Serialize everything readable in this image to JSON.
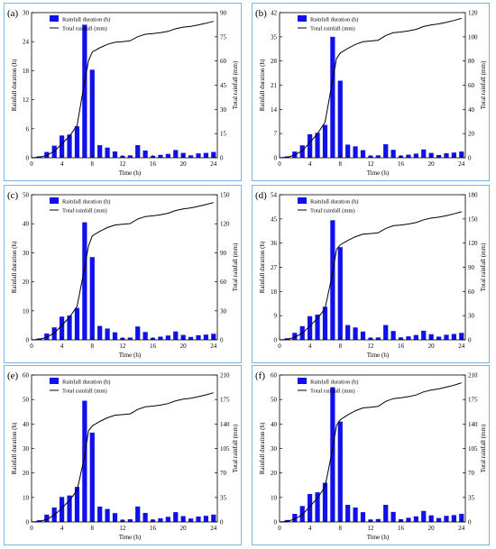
{
  "chart_data": [
    {
      "type": "bar",
      "panel_label": "(a)",
      "xlabel": "Time  (h)",
      "ylabel": "Rainfall duration  (h)",
      "y2label": "Total rainfall  (mm)",
      "legend": [
        "Rainfall duration  (h)",
        "Total rainfall  (mm)"
      ],
      "xticks": [
        0,
        4,
        8,
        12,
        16,
        20,
        24
      ],
      "xlim": [
        0,
        24.5
      ],
      "ylim": [
        0,
        30
      ],
      "yticks": [
        0,
        6,
        12,
        18,
        24,
        30
      ],
      "y2lim": [
        0,
        90
      ],
      "y2ticks": [
        0,
        15,
        30,
        45,
        60,
        75,
        90
      ],
      "series": [
        {
          "name": "Rainfall duration  (h)",
          "kind": "bar",
          "x": [
            1,
            2,
            3,
            4,
            5,
            6,
            7,
            8,
            9,
            10,
            11,
            12,
            13,
            14,
            15,
            16,
            17,
            18,
            19,
            20,
            21,
            22,
            23,
            24
          ],
          "values": [
            0.3,
            1.2,
            2.5,
            4.6,
            4.8,
            6.5,
            27.5,
            18.2,
            2.6,
            2.1,
            1.3,
            0.4,
            0.5,
            2.6,
            1.5,
            0.4,
            0.6,
            0.8,
            1.6,
            1.0,
            0.5,
            0.9,
            1.0,
            1.2
          ]
        },
        {
          "name": "Total rainfall  (mm)",
          "kind": "line",
          "x": [
            0,
            1,
            2,
            3,
            4,
            5,
            6,
            7,
            7.5,
            8,
            9,
            10,
            11,
            12,
            13,
            14,
            15,
            16,
            17,
            18,
            19,
            20,
            21,
            22,
            23,
            24
          ],
          "values": [
            0,
            0.3,
            1.5,
            4,
            8.6,
            13.4,
            19.9,
            47.4,
            60,
            65.6,
            68.2,
            70.3,
            71.6,
            72,
            72.5,
            75.1,
            76.6,
            77,
            77.6,
            78.4,
            80,
            81,
            81.5,
            82.4,
            83.4,
            84.6
          ]
        }
      ]
    },
    {
      "type": "bar",
      "panel_label": "(b)",
      "xlabel": "Time  (h)",
      "ylabel": "Rainfall duration  (h)",
      "y2label": "Total rainfall  (mm)",
      "legend": [
        "Rainfall duration  (h)",
        "Total rainfall  (mm)"
      ],
      "xticks": [
        0,
        4,
        8,
        12,
        16,
        20,
        24
      ],
      "xlim": [
        0,
        24.5
      ],
      "ylim": [
        0,
        42
      ],
      "yticks": [
        0,
        7,
        14,
        21,
        28,
        35,
        42
      ],
      "y2lim": [
        0,
        120
      ],
      "y2ticks": [
        0,
        20,
        40,
        60,
        80,
        100,
        120
      ],
      "series": [
        {
          "name": "Rainfall duration  (h)",
          "kind": "bar",
          "x": [
            1,
            2,
            3,
            4,
            5,
            6,
            7,
            8,
            9,
            10,
            11,
            12,
            13,
            14,
            15,
            16,
            17,
            18,
            19,
            20,
            21,
            22,
            23,
            24
          ],
          "values": [
            0.4,
            1.8,
            3.6,
            6.8,
            7.2,
            9.5,
            35,
            22.3,
            3.8,
            3.3,
            2.2,
            0.6,
            0.7,
            3.9,
            2.3,
            0.6,
            0.9,
            1.2,
            2.4,
            1.4,
            0.8,
            1.3,
            1.5,
            1.8
          ]
        },
        {
          "name": "Total rainfall  (mm)",
          "kind": "line",
          "x": [
            0,
            1,
            2,
            3,
            4,
            5,
            6,
            7,
            7.5,
            8,
            9,
            10,
            11,
            12,
            13,
            14,
            15,
            16,
            17,
            18,
            19,
            20,
            21,
            22,
            23,
            24
          ],
          "values": [
            0,
            0.4,
            2.2,
            5.8,
            12.6,
            19.8,
            29.3,
            64.3,
            82,
            86.6,
            90.4,
            93.7,
            95.9,
            96.5,
            97.2,
            101.1,
            103.4,
            104,
            104.9,
            106.1,
            108.5,
            109.9,
            110.7,
            112,
            113.5,
            115.3
          ]
        }
      ]
    },
    {
      "type": "bar",
      "panel_label": "(c)",
      "xlabel": "Time  (h)",
      "ylabel": "Rainfall duration  (h)",
      "y2label": "Total rainfall  (mm)",
      "legend": [
        "Rainfall duration  (h)",
        "Total rainfall  (mm)"
      ],
      "xticks": [
        0,
        4,
        8,
        12,
        16,
        20,
        24
      ],
      "xlim": [
        0,
        24.5
      ],
      "ylim": [
        0,
        50
      ],
      "yticks": [
        0,
        10,
        20,
        30,
        40,
        50
      ],
      "y2lim": [
        0,
        150
      ],
      "y2ticks": [
        0,
        30,
        60,
        90,
        120,
        150
      ],
      "series": [
        {
          "name": "Rainfall duration  (h)",
          "kind": "bar",
          "x": [
            1,
            2,
            3,
            4,
            5,
            6,
            7,
            8,
            9,
            10,
            11,
            12,
            13,
            14,
            15,
            16,
            17,
            18,
            19,
            20,
            21,
            22,
            23,
            24
          ],
          "values": [
            0.5,
            2.2,
            4.3,
            8,
            8.4,
            11,
            40.5,
            28.5,
            4.8,
            3.9,
            2.6,
            0.7,
            0.8,
            4.6,
            2.7,
            0.7,
            1.1,
            1.5,
            2.9,
            1.7,
            1,
            1.6,
            1.8,
            2.1
          ]
        },
        {
          "name": "Total rainfall  (mm)",
          "kind": "line",
          "x": [
            0,
            1,
            2,
            3,
            4,
            5,
            6,
            7,
            7.5,
            8,
            9,
            10,
            11,
            12,
            13,
            14,
            15,
            16,
            17,
            18,
            19,
            20,
            21,
            22,
            23,
            24
          ],
          "values": [
            0,
            0.5,
            2.7,
            7,
            15,
            23.4,
            34.4,
            74.9,
            97,
            107.4,
            112.2,
            116.1,
            118.7,
            119.4,
            120.2,
            124.8,
            127.5,
            128.2,
            129.3,
            130.8,
            133.7,
            135.4,
            136.4,
            138,
            139.8,
            141.9
          ]
        }
      ]
    },
    {
      "type": "bar",
      "panel_label": "(d)",
      "xlabel": "Time  (h)",
      "ylabel": "Rainfall duration  (h)",
      "y2label": "Total rainfall  (mm)",
      "legend": [
        "Rainfall duration  (h)",
        "Total rainfall  (mm)"
      ],
      "xticks": [
        0,
        4,
        8,
        12,
        16,
        20,
        24
      ],
      "xlim": [
        0,
        24.5
      ],
      "ylim": [
        0,
        54
      ],
      "yticks": [
        0,
        9,
        18,
        27,
        36,
        45,
        54
      ],
      "y2lim": [
        0,
        180
      ],
      "y2ticks": [
        0,
        30,
        60,
        90,
        120,
        150,
        180
      ],
      "series": [
        {
          "name": "Rainfall duration  (h)",
          "kind": "bar",
          "x": [
            1,
            2,
            3,
            4,
            5,
            6,
            7,
            8,
            9,
            10,
            11,
            12,
            13,
            14,
            15,
            16,
            17,
            18,
            19,
            20,
            21,
            22,
            23,
            24
          ],
          "values": [
            0.6,
            2.6,
            5.1,
            8.8,
            9.4,
            12.3,
            44.5,
            34.5,
            5.5,
            4.6,
            3.1,
            0.8,
            0.9,
            5.5,
            3.3,
            0.9,
            1.3,
            1.8,
            3.4,
            2.1,
            1.2,
            1.9,
            2.2,
            2.6
          ]
        },
        {
          "name": "Total rainfall  (mm)",
          "kind": "line",
          "x": [
            0,
            1,
            2,
            3,
            4,
            5,
            6,
            7,
            7.5,
            8,
            9,
            10,
            11,
            12,
            13,
            14,
            15,
            16,
            17,
            18,
            19,
            20,
            21,
            22,
            23,
            24
          ],
          "values": [
            0,
            0.6,
            3.2,
            8.3,
            17.1,
            26.5,
            38.8,
            83.3,
            112,
            117.8,
            123.3,
            127.9,
            131,
            131.8,
            132.7,
            138.2,
            141.5,
            142.4,
            143.7,
            145.5,
            148.9,
            151,
            152.2,
            154.1,
            156.3,
            158.9
          ]
        }
      ]
    },
    {
      "type": "bar",
      "panel_label": "(e)",
      "xlabel": "Time  (h)",
      "ylabel": "Rainfall duration  (h)",
      "y2label": "Total rainfall  (mm)",
      "legend": [
        "Rainfall duration  (h)",
        "Total rainfall  (mm)"
      ],
      "xticks": [
        0,
        4,
        8,
        12,
        16,
        20,
        24
      ],
      "xlim": [
        0,
        24.5
      ],
      "ylim": [
        0,
        60
      ],
      "yticks": [
        0,
        10,
        20,
        30,
        40,
        50,
        60
      ],
      "y2lim": [
        0,
        210
      ],
      "y2ticks": [
        0,
        35,
        70,
        105,
        140,
        175,
        210
      ],
      "series": [
        {
          "name": "Rainfall duration  (h)",
          "kind": "bar",
          "x": [
            1,
            2,
            3,
            4,
            5,
            6,
            7,
            8,
            9,
            10,
            11,
            12,
            13,
            14,
            15,
            16,
            17,
            18,
            19,
            20,
            21,
            22,
            23,
            24
          ],
          "values": [
            0.7,
            3,
            5.9,
            10.2,
            10.8,
            14.3,
            49.5,
            36.5,
            6.3,
            5.3,
            3.6,
            0.9,
            1.1,
            6.3,
            3.7,
            1,
            1.5,
            2.1,
            4,
            2.4,
            1.4,
            2.2,
            2.5,
            3
          ]
        },
        {
          "name": "Total rainfall  (mm)",
          "kind": "line",
          "x": [
            0,
            1,
            2,
            3,
            4,
            5,
            6,
            7,
            7.5,
            8,
            9,
            10,
            11,
            12,
            13,
            14,
            15,
            16,
            17,
            18,
            19,
            20,
            21,
            22,
            23,
            24
          ],
          "values": [
            0,
            0.7,
            3.7,
            9.6,
            19.8,
            30.6,
            44.9,
            94.4,
            130,
            137.3,
            143.6,
            148.9,
            152.5,
            153.4,
            154.5,
            160.8,
            164.5,
            165.5,
            167,
            169.1,
            173.1,
            175.5,
            176.9,
            179.1,
            181.6,
            184.6
          ]
        }
      ]
    },
    {
      "type": "bar",
      "panel_label": "(f)",
      "xlabel": "Time  (h)",
      "ylabel": "Rainfall duration  (h)",
      "y2label": "Total rainfall  (mm)",
      "legend": [
        "Rainfall duration  (h)",
        "Total rainfall  (mm)"
      ],
      "xticks": [
        0,
        4,
        8,
        12,
        16,
        20,
        24
      ],
      "xlim": [
        0,
        24.5
      ],
      "ylim": [
        0,
        60
      ],
      "yticks": [
        0,
        10,
        20,
        30,
        40,
        50,
        60
      ],
      "y2lim": [
        0,
        210
      ],
      "y2ticks": [
        0,
        35,
        70,
        105,
        140,
        175,
        210
      ],
      "series": [
        {
          "name": "Rainfall duration  (h)",
          "kind": "bar",
          "x": [
            1,
            2,
            3,
            4,
            5,
            6,
            7,
            8,
            9,
            10,
            11,
            12,
            13,
            14,
            15,
            16,
            17,
            18,
            19,
            20,
            21,
            22,
            23,
            24
          ],
          "values": [
            0.8,
            3.3,
            6.5,
            11.4,
            12.1,
            16,
            55,
            41,
            7,
            5.9,
            4,
            1,
            1.2,
            7,
            4.1,
            1.1,
            1.7,
            2.3,
            4.5,
            2.7,
            1.6,
            2.5,
            2.8,
            3.3
          ]
        },
        {
          "name": "Total rainfall  (mm)",
          "kind": "line",
          "x": [
            0,
            1,
            2,
            3,
            4,
            5,
            6,
            7,
            7.5,
            8,
            9,
            10,
            11,
            12,
            13,
            14,
            15,
            16,
            17,
            18,
            19,
            20,
            21,
            22,
            23,
            24
          ],
          "values": [
            0,
            0.8,
            4.1,
            10.6,
            22,
            34.1,
            50.1,
            105.1,
            138,
            146.1,
            153.1,
            159,
            163,
            164,
            165.2,
            172.2,
            176.3,
            177.4,
            179.1,
            181.4,
            185.9,
            188.6,
            190.2,
            192.7,
            195.5,
            198.8
          ]
        }
      ]
    }
  ]
}
